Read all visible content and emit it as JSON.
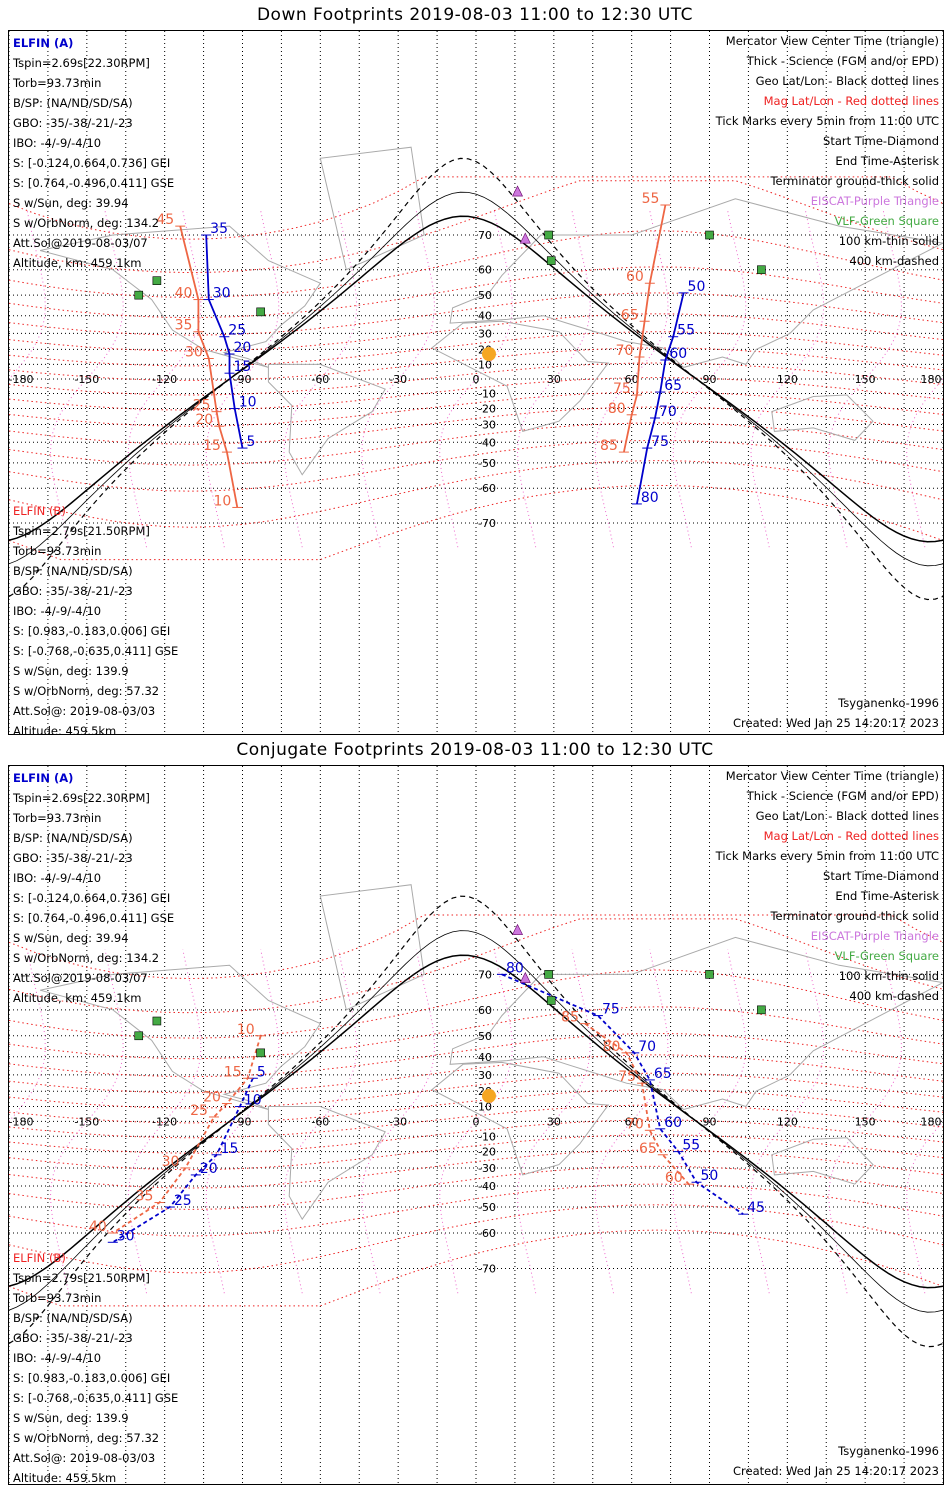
{
  "titles": {
    "down": "Down Footprints 2019-08-03 11:00 to 12:30 UTC",
    "conjugate": "Conjugate Footprints 2019-08-03 11:00 to 12:30 UTC"
  },
  "elfin_a": {
    "name": "ELFIN (A)",
    "lines": [
      "Tspin=2.69s[22.30RPM]",
      "Torb=93.73min",
      "B/SP: (NA/ND/SD/SA)",
      "GBO: -35/-38/-21/-23",
      "IBO: -4/-9/-4/10",
      "S: [-0.124,0.664,0.736] GEI",
      "S: [0.764,-0.496,0.411] GSE",
      "S w/Sun, deg: 39.94",
      "S w/OrbNorm, deg: 134.2",
      "Att.Sol@2019-08-03/07",
      "Altitude, km: 459.1km"
    ]
  },
  "elfin_b": {
    "name": "ELFIN (B)",
    "lines": [
      "Tspin=2.79s[21.50RPM]",
      "Torb=93.73min",
      "B/SP: (NA/ND/SD/SA)",
      "GBO: -35/-38/-21/-23",
      "IBO: -4/-9/-4/10",
      "S: [0.983,-0.183,0.006] GEI",
      "S: [-0.768,-0.635,0.411] GSE",
      "S w/Sun, deg: 139.9",
      "S w/OrbNorm, deg: 57.32",
      "Att.Sol@: 2019-08-03/03",
      "Altitude: 459.5km"
    ]
  },
  "legend": [
    {
      "text": "Mercator View Center Time (triangle)",
      "color": "#000000"
    },
    {
      "text": "Thick - Science (FGM and/or EPD)",
      "color": "#000000"
    },
    {
      "text": "Geo Lat/Lon - Black dotted lines",
      "color": "#000000"
    },
    {
      "text": "Mag Lat/Lon - Red dotted lines",
      "color": "#ee2222"
    },
    {
      "text": "Tick Marks every 5min from 11:00 UTC",
      "color": "#000000"
    },
    {
      "text": "Start Time-Diamond",
      "color": "#000000"
    },
    {
      "text": "End Time-Asterisk",
      "color": "#000000"
    },
    {
      "text": "Terminator ground-thick solid",
      "color": "#000000"
    },
    {
      "text": "EISCAT-Purple Triangle",
      "color": "#cc77dd"
    },
    {
      "text": "VLF-Green Square",
      "color": "#44aa44"
    },
    {
      "text": "100 km-thin solid",
      "color": "#000000"
    },
    {
      "text": "400 km-dashed",
      "color": "#000000"
    }
  ],
  "footer": {
    "model": "Tsyganenko-1996",
    "created": "Created: Wed Jan 25 14:20:17 2023"
  },
  "axes": {
    "lon_ticks": [
      "-180",
      "-150",
      "-120",
      "-90",
      "-60",
      "-30",
      "0",
      "30",
      "60",
      "90",
      "120",
      "150",
      "180"
    ],
    "lat_ticks": [
      "70",
      "60",
      "50",
      "40",
      "30",
      "20",
      "10",
      "-10",
      "-20",
      "-30",
      "-40",
      "-50",
      "-60",
      "-70"
    ]
  },
  "down_map": {
    "elfin_a_time_ticks": [
      {
        "label": "35",
        "lon": -104,
        "lat": 70
      },
      {
        "label": "30",
        "lon": -103,
        "lat": 48
      },
      {
        "label": "25",
        "lon": -97,
        "lat": 28
      },
      {
        "label": "20",
        "lon": -95,
        "lat": 17
      },
      {
        "label": "15",
        "lon": -95,
        "lat": 4
      },
      {
        "label": "10",
        "lon": -93,
        "lat": -20
      },
      {
        "label": "5",
        "lon": -90,
        "lat": -43
      },
      {
        "label": "50",
        "lon": 80,
        "lat": 51
      },
      {
        "label": "55",
        "lon": 76,
        "lat": 28
      },
      {
        "label": "60",
        "lon": 73,
        "lat": 13
      },
      {
        "label": "65",
        "lon": 71,
        "lat": -9
      },
      {
        "label": "70",
        "lon": 69,
        "lat": -26
      },
      {
        "label": "75",
        "lon": 66,
        "lat": -43
      },
      {
        "label": "80",
        "lon": 62,
        "lat": -65
      }
    ],
    "elfin_b_time_ticks": [
      {
        "label": "45",
        "lon": -114,
        "lat": 72
      },
      {
        "label": "40",
        "lon": -107,
        "lat": 48
      },
      {
        "label": "35",
        "lon": -107,
        "lat": 31
      },
      {
        "label": "30",
        "lon": -103,
        "lat": 14
      },
      {
        "label": "25",
        "lon": -100,
        "lat": -22
      },
      {
        "label": "20",
        "lon": -99,
        "lat": -31
      },
      {
        "label": "15",
        "lon": -96,
        "lat": -45
      },
      {
        "label": "10",
        "lon": -92,
        "lat": -66
      },
      {
        "label": "55",
        "lon": 73,
        "lat": 76
      },
      {
        "label": "60",
        "lon": 67,
        "lat": 55
      },
      {
        "label": "65",
        "lon": 65,
        "lat": 37
      },
      {
        "label": "70",
        "lon": 63,
        "lat": 15
      },
      {
        "label": "75",
        "lon": 62,
        "lat": -11
      },
      {
        "label": "80",
        "lon": 60,
        "lat": -24
      },
      {
        "label": "85",
        "lon": 57,
        "lat": -45
      }
    ]
  },
  "conjugate_map": {
    "elfin_a_time_ticks": [
      {
        "label": "80",
        "lon": 10,
        "lat": 70
      },
      {
        "label": "75",
        "lon": 47,
        "lat": 58
      },
      {
        "label": "70",
        "lon": 61,
        "lat": 42
      },
      {
        "label": "65",
        "lon": 67,
        "lat": 27
      },
      {
        "label": "60",
        "lon": 71,
        "lat": -5
      },
      {
        "label": "55",
        "lon": 78,
        "lat": -20
      },
      {
        "label": "50",
        "lon": 85,
        "lat": -38
      },
      {
        "label": "45",
        "lon": 103,
        "lat": -53
      },
      {
        "label": "5",
        "lon": -86,
        "lat": 28
      },
      {
        "label": "10",
        "lon": -91,
        "lat": 10
      },
      {
        "label": "15",
        "lon": -100,
        "lat": -22
      },
      {
        "label": "20",
        "lon": -108,
        "lat": -34
      },
      {
        "label": "25",
        "lon": -118,
        "lat": -50
      },
      {
        "label": "30",
        "lon": -140,
        "lat": -63
      }
    ],
    "elfin_b_time_ticks": [
      {
        "label": "85",
        "lon": 42,
        "lat": 55
      },
      {
        "label": "80",
        "lon": 58,
        "lat": 42
      },
      {
        "label": "75",
        "lon": 64,
        "lat": 25
      },
      {
        "label": "70",
        "lon": 67,
        "lat": -6
      },
      {
        "label": "65",
        "lon": 72,
        "lat": -22
      },
      {
        "label": "60",
        "lon": 82,
        "lat": -39
      },
      {
        "label": "10",
        "lon": -83,
        "lat": 50
      },
      {
        "label": "15",
        "lon": -88,
        "lat": 28
      },
      {
        "label": "20",
        "lon": -96,
        "lat": 12
      },
      {
        "label": "25",
        "lon": -101,
        "lat": 3
      },
      {
        "label": "30",
        "lon": -112,
        "lat": -30
      },
      {
        "label": "35",
        "lon": -122,
        "lat": -48
      },
      {
        "label": "40",
        "lon": -140,
        "lat": -60
      }
    ]
  }
}
